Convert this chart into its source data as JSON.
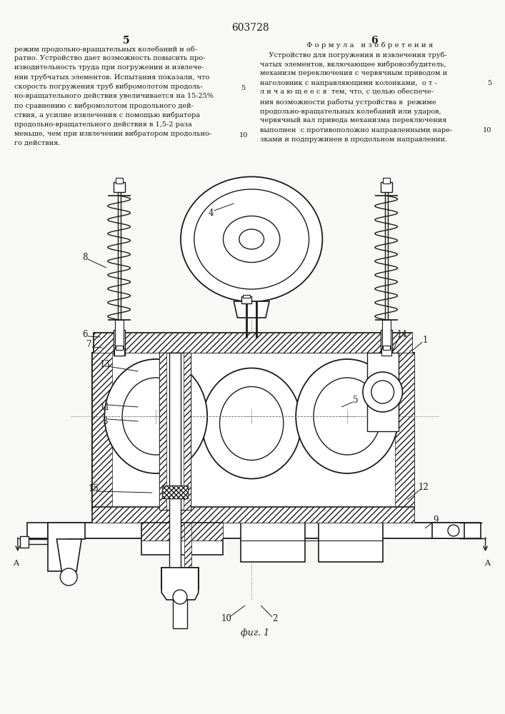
{
  "patent_number": "603728",
  "col_left_num": "5",
  "col_right_num": "6",
  "left_text": [
    "режим продольно-вращательных колебаний и об-",
    "ратно. Устройство дает возможность повысить про-",
    "изводительность труда при погружении и извлече-",
    "нии трубчатых элементов. Испытания показали, что",
    "скорость погружения труб вибромолотом продоль-",
    "но-вращательного действия увеличивается на 15-25%",
    "по сравнению с вибромолотом продольного дей-",
    "ствия, а усилие извлечения с помощью вибратора",
    "продольно-вращательного действия в 1,5-2 раза",
    "меньше, чем при извлечении вибратором продольно-",
    "го действия."
  ],
  "right_header": "Ф о р м у л а   и з о б р е т е н и я",
  "right_text": [
    "    Устройство для погружения и извлечения труб-",
    "чатых элементов, включающее вибровозбудитель,",
    "механизм переключения с червячным приводом и",
    "наголовник с направляющими колонками,  о т -",
    "л и ч а ю щ е е с я  тем, что, с целью обеспече-",
    "ния возможности работы устройства в  режиме",
    "продольно-вращательных колебаний или ударов,",
    "червячный вал привода механизма переключения",
    "выполнен  с противоположно направленными наре-",
    "зками и подпружинен в продольном направлении."
  ],
  "fig_label": "фиг. 1",
  "bg_color": "#f8f8f6",
  "line_color": "#1a1a1a",
  "text_color": "#1a1a1a",
  "hatch_color": "#444444"
}
